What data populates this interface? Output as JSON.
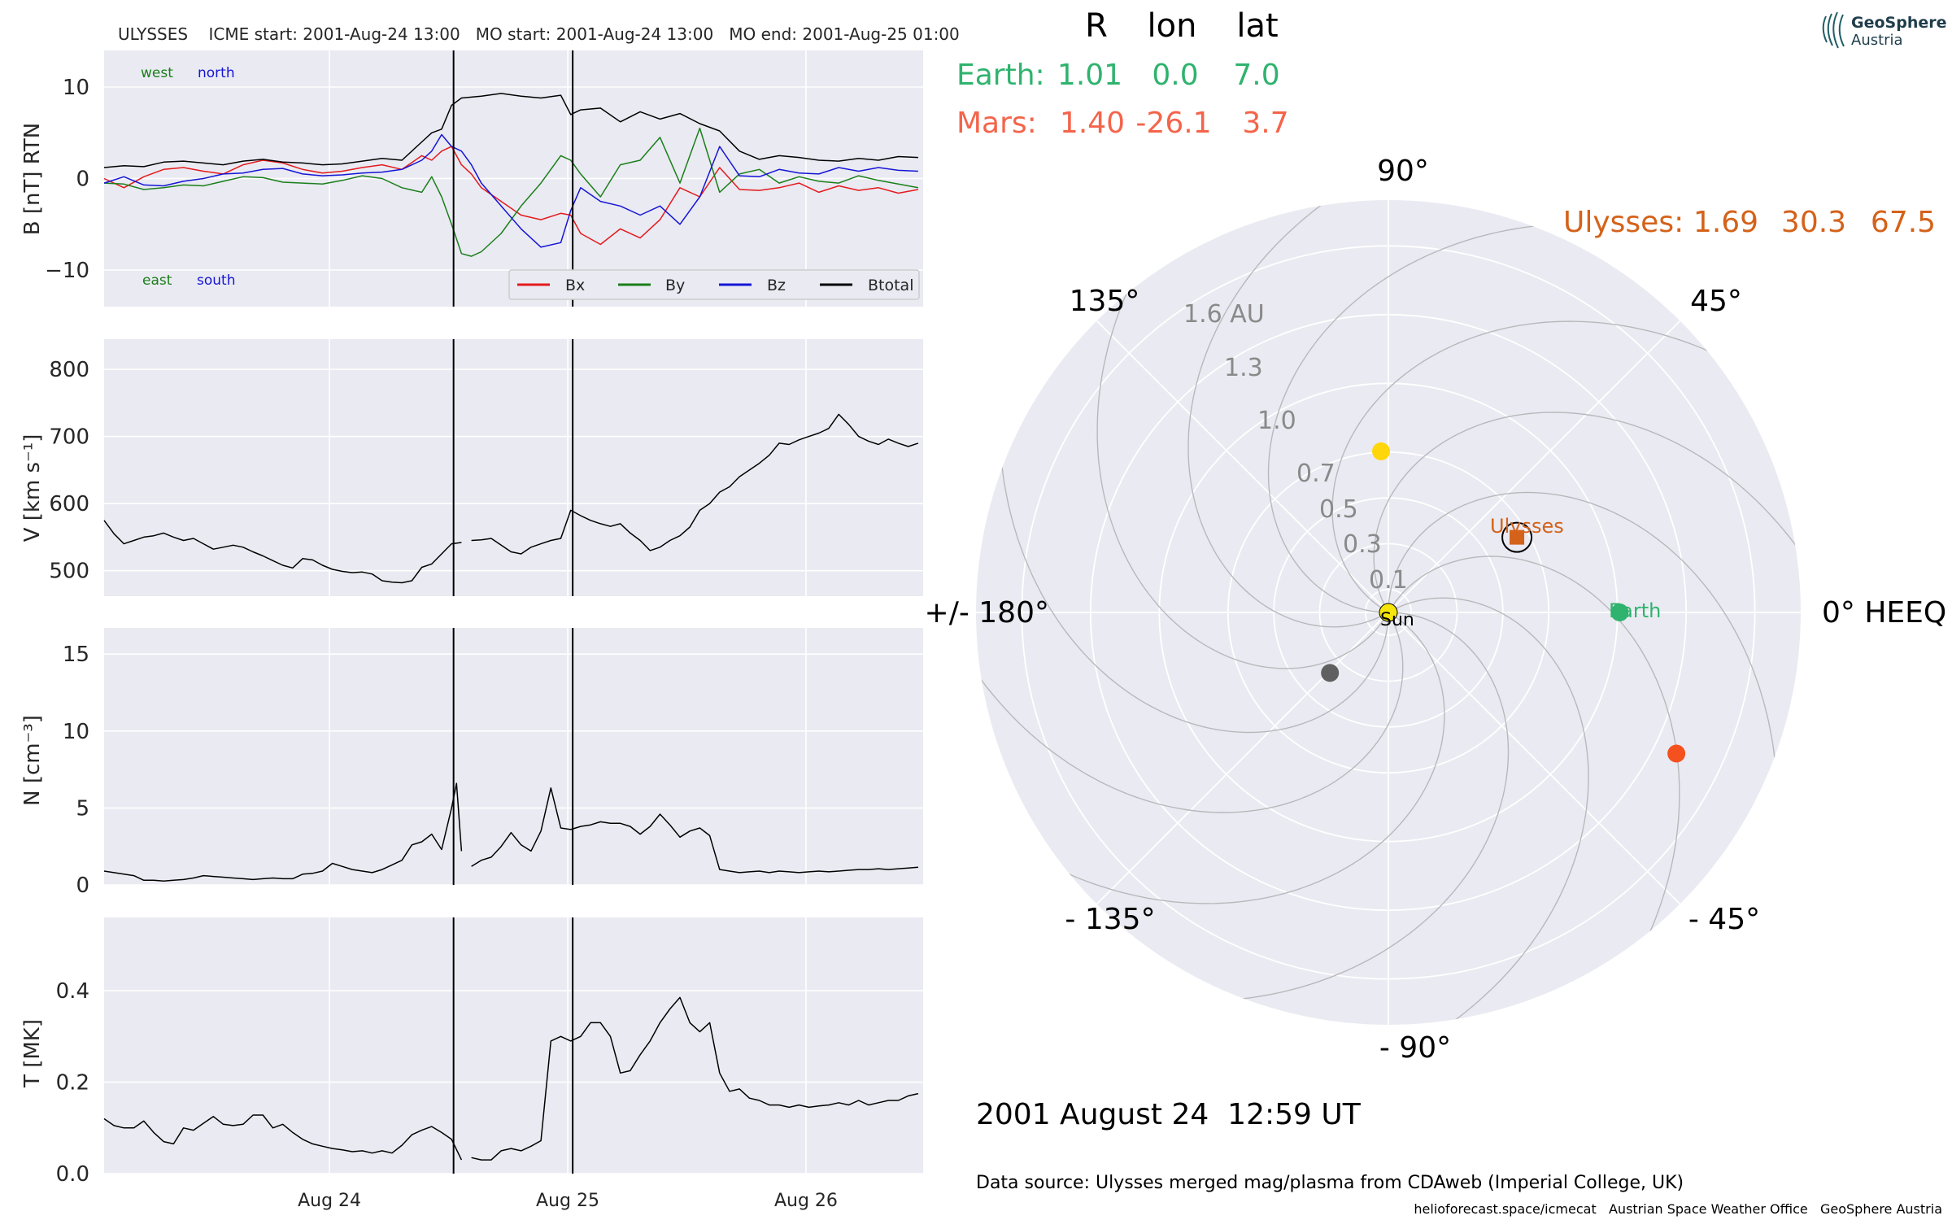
{
  "title": "ULYSSES    ICME start: 2001-Aug-24 13:00   MO start: 2001-Aug-24 13:00   MO end: 2001-Aug-25 01:00",
  "logo": {
    "line1": "GeoSphere",
    "line2": "Austria"
  },
  "timeseries": {
    "x_ticks": [
      "Aug 24",
      "Aug 25",
      "Aug 26"
    ],
    "event_lines": [
      "2001-08-24 13:00",
      "2001-08-25 01:00"
    ]
  },
  "panels": {
    "b": {
      "ylabel": "B [nT] RTN",
      "yticks": [
        "10",
        "0",
        "−10"
      ],
      "annotations": {
        "west": "west",
        "north": "north",
        "east": "east",
        "south": "south"
      },
      "legend": [
        "Bx",
        "By",
        "Bz",
        "Btotal"
      ]
    },
    "v": {
      "ylabel": "V [km s⁻¹]",
      "yticks": [
        "800",
        "700",
        "600",
        "500"
      ]
    },
    "n": {
      "ylabel": "N [cm⁻³]",
      "yticks": [
        "15",
        "10",
        "5",
        "0"
      ]
    },
    "t": {
      "ylabel": "T [MK]",
      "yticks": [
        "0.4",
        "0.2",
        "0.0"
      ]
    }
  },
  "positions": {
    "header": {
      "r": "R",
      "lon": "lon",
      "lat": "lat"
    },
    "earth": {
      "label": "Earth:",
      "r": "1.01",
      "lon": "0.0",
      "lat": "7.0",
      "color": "#2fb36e"
    },
    "mars": {
      "label": "Mars:",
      "r": "1.40",
      "lon": "-26.1",
      "lat": "3.7",
      "color": "#f4644a"
    },
    "ulysses": {
      "label": "Ulysses:",
      "r": "1.69",
      "lon": "30.3",
      "lat": "67.5",
      "color": "#d4621a"
    }
  },
  "polar": {
    "angle_labels": {
      "a90": "90°",
      "a45": "45°",
      "a135": "135°",
      "a0": "0° HEEQ",
      "a180": "+/- 180°",
      "am45": "- 45°",
      "am135": "- 135°",
      "am90": "- 90°"
    },
    "r_labels": [
      "1.6 AU",
      "1.3",
      "1.0",
      "0.7",
      "0.5",
      "0.3",
      "0.1"
    ],
    "object_labels": {
      "sun": "Sun",
      "earth": "Earth",
      "ulysses": "Ulysses"
    }
  },
  "date_text": "2001 August 24  12:59 UT",
  "data_source": "Data source: Ulysses merged mag/plasma from CDAweb (Imperial College, UK)",
  "footer": "helioforecast.space/icmecat   Austrian Space Weather Office   GeoSphere Austria",
  "colors": {
    "bx": "#e41a1c",
    "by": "#1a7f1a",
    "bz": "#1515d6",
    "btotal": "#000000",
    "panel_bg": "#eaeaf2"
  },
  "chart_data": [
    {
      "type": "line",
      "ylabel": "B [nT] RTN",
      "x_unit": "hours since plot start (Aug 24 00:00 = 22.7, Aug 25 00:00 = 46.7, Aug 26 00:00 = 70.7)",
      "ylim": [
        -14,
        14
      ],
      "series": [
        {
          "name": "Btotal",
          "x": [
            0,
            2,
            4,
            6,
            8,
            10,
            12,
            14,
            16,
            18,
            20,
            22,
            24,
            26,
            28,
            30,
            32,
            33,
            34,
            35,
            36,
            37,
            38,
            40,
            42,
            44,
            46,
            47,
            48,
            50,
            52,
            54,
            56,
            58,
            60,
            62,
            64,
            66,
            68,
            70,
            72,
            74,
            76,
            78,
            80,
            82
          ],
          "values": [
            1.2,
            1.4,
            1.3,
            1.8,
            1.9,
            1.7,
            1.5,
            1.9,
            2.1,
            1.8,
            1.7,
            1.5,
            1.6,
            1.9,
            2.2,
            2.0,
            4.0,
            5.0,
            5.4,
            8.0,
            8.8,
            8.9,
            9.0,
            9.3,
            9.0,
            8.8,
            9.1,
            7.0,
            7.5,
            7.7,
            6.2,
            7.3,
            6.5,
            7.1,
            6.0,
            5.2,
            3.0,
            2.1,
            2.5,
            2.3,
            2.0,
            1.9,
            2.2,
            2.0,
            2.4,
            2.3
          ]
        },
        {
          "name": "Bx",
          "x": [
            0,
            2,
            4,
            6,
            8,
            10,
            12,
            14,
            16,
            18,
            20,
            22,
            24,
            26,
            28,
            30,
            32,
            33,
            34,
            35,
            36,
            37,
            38,
            40,
            42,
            44,
            46,
            47,
            48,
            50,
            52,
            54,
            56,
            58,
            60,
            62,
            64,
            66,
            68,
            70,
            72,
            74,
            76,
            78,
            80,
            82
          ],
          "values": [
            0.0,
            -1.0,
            0.2,
            1.0,
            1.2,
            0.8,
            0.5,
            1.5,
            2.0,
            1.7,
            1.0,
            0.6,
            0.8,
            1.2,
            1.5,
            1.0,
            2.5,
            2.0,
            3.0,
            3.5,
            1.5,
            0.5,
            -1.0,
            -2.5,
            -4.0,
            -4.5,
            -3.8,
            -4.0,
            -6.0,
            -7.2,
            -5.5,
            -6.5,
            -4.5,
            -1.0,
            -2.0,
            1.2,
            -1.2,
            -1.3,
            -1.0,
            -0.5,
            -1.5,
            -0.8,
            -1.3,
            -1.0,
            -1.6,
            -1.2
          ]
        },
        {
          "name": "By",
          "x": [
            0,
            2,
            4,
            6,
            8,
            10,
            12,
            14,
            16,
            18,
            20,
            22,
            24,
            26,
            28,
            30,
            32,
            33,
            34,
            35,
            36,
            37,
            38,
            40,
            42,
            44,
            46,
            47,
            48,
            50,
            52,
            54,
            56,
            58,
            60,
            62,
            64,
            66,
            68,
            70,
            72,
            74,
            76,
            78,
            80,
            82
          ],
          "values": [
            -0.5,
            -0.6,
            -1.2,
            -1.0,
            -0.7,
            -0.8,
            -0.3,
            0.2,
            0.1,
            -0.4,
            -0.5,
            -0.6,
            -0.2,
            0.3,
            0.0,
            -1.0,
            -1.5,
            0.2,
            -2.0,
            -5.0,
            -8.2,
            -8.5,
            -8.0,
            -6.0,
            -3.0,
            -0.5,
            2.5,
            2.0,
            0.5,
            -2.0,
            1.5,
            2.0,
            4.5,
            -0.5,
            5.5,
            -1.5,
            0.5,
            1.0,
            -0.5,
            0.2,
            -0.3,
            -0.5,
            0.3,
            -0.2,
            -0.6,
            -1.0
          ]
        },
        {
          "name": "Bz",
          "x": [
            0,
            2,
            4,
            6,
            8,
            10,
            12,
            14,
            16,
            18,
            20,
            22,
            24,
            26,
            28,
            30,
            32,
            33,
            34,
            35,
            36,
            37,
            38,
            40,
            42,
            44,
            46,
            47,
            48,
            50,
            52,
            54,
            56,
            58,
            60,
            62,
            64,
            66,
            68,
            70,
            72,
            74,
            76,
            78,
            80,
            82
          ],
          "values": [
            -0.5,
            0.2,
            -0.7,
            -0.8,
            -0.3,
            0.0,
            0.5,
            0.6,
            1.0,
            1.1,
            0.5,
            0.3,
            0.4,
            0.6,
            0.7,
            1.0,
            2.0,
            3.0,
            4.8,
            3.5,
            3.0,
            1.5,
            -0.5,
            -3.0,
            -5.5,
            -7.5,
            -7.0,
            -3.5,
            -1.0,
            -2.5,
            -3.0,
            -4.0,
            -3.0,
            -5.0,
            -2.0,
            3.5,
            0.3,
            0.2,
            1.0,
            0.6,
            0.5,
            1.2,
            0.8,
            1.2,
            0.9,
            0.8
          ]
        }
      ]
    },
    {
      "type": "line",
      "ylabel": "V [km s⁻¹]",
      "ylim": [
        462,
        845
      ],
      "series": [
        {
          "name": "V",
          "x": [
            0,
            1,
            2,
            3,
            4,
            5,
            6,
            7,
            8,
            9,
            10,
            11,
            12,
            13,
            14,
            15,
            16,
            17,
            18,
            19,
            20,
            21,
            22,
            23,
            24,
            25,
            26,
            27,
            28,
            29,
            30,
            31,
            32,
            33,
            34,
            35,
            36
          ],
          "values": [
            575,
            555,
            540,
            545,
            550,
            552,
            556,
            550,
            545,
            548,
            540,
            532,
            535,
            538,
            535,
            528,
            522,
            515,
            508,
            504,
            518,
            516,
            508,
            502,
            499,
            497,
            498,
            495,
            485,
            483,
            482,
            485,
            505,
            510,
            525,
            540,
            542
          ]
        },
        {
          "name": "V",
          "x": [
            37,
            38,
            39,
            40,
            41,
            42,
            43,
            44,
            45,
            46,
            47,
            48,
            49,
            50,
            51,
            52,
            53,
            54,
            55,
            56,
            57,
            58,
            59,
            60,
            61,
            62,
            63,
            64,
            65,
            66,
            67,
            68,
            69,
            70,
            71,
            72,
            73,
            74,
            75,
            76,
            77,
            78,
            79,
            80,
            81,
            82
          ],
          "values": [
            545,
            546,
            548,
            538,
            528,
            525,
            535,
            540,
            545,
            548,
            590,
            582,
            575,
            570,
            566,
            570,
            556,
            545,
            530,
            535,
            545,
            552,
            565,
            590,
            600,
            617,
            625,
            640,
            650,
            660,
            672,
            690,
            688,
            695,
            700,
            705,
            712,
            733,
            718,
            700,
            693,
            688,
            696,
            690,
            685,
            690
          ]
        }
      ]
    },
    {
      "type": "line",
      "ylabel": "N [cm⁻³]",
      "ylim": [
        0,
        16.7
      ],
      "series": [
        {
          "name": "N",
          "x": [
            0,
            1,
            2,
            3,
            4,
            5,
            6,
            7,
            8,
            9,
            10,
            11,
            12,
            13,
            14,
            15,
            16,
            17,
            18,
            19,
            20,
            21,
            22,
            23,
            24,
            25,
            26,
            27,
            28,
            29,
            30,
            31,
            32,
            33,
            34,
            35,
            35.5,
            36
          ],
          "values": [
            0.9,
            0.8,
            0.7,
            0.6,
            0.3,
            0.3,
            0.25,
            0.3,
            0.35,
            0.45,
            0.6,
            0.55,
            0.5,
            0.45,
            0.4,
            0.35,
            0.4,
            0.45,
            0.4,
            0.4,
            0.7,
            0.75,
            0.9,
            1.4,
            1.2,
            1.0,
            0.9,
            0.8,
            1.0,
            1.3,
            1.6,
            2.6,
            2.8,
            3.3,
            2.3,
            5.0,
            6.6,
            2.2
          ]
        },
        {
          "name": "N",
          "x": [
            37,
            38,
            39,
            40,
            41,
            42,
            43,
            44,
            45,
            46,
            47,
            48,
            49,
            50,
            51,
            52,
            53,
            54,
            55,
            56,
            57,
            58,
            59,
            60,
            61,
            62,
            63,
            64,
            65,
            66,
            67,
            68,
            69,
            70,
            71,
            72,
            73,
            74,
            75,
            76,
            77,
            78,
            79,
            80,
            81,
            82
          ],
          "values": [
            1.2,
            1.6,
            1.8,
            2.5,
            3.4,
            2.6,
            2.2,
            3.5,
            6.3,
            3.7,
            3.6,
            3.8,
            3.9,
            4.1,
            4.0,
            4.0,
            3.8,
            3.3,
            3.8,
            4.6,
            3.9,
            3.1,
            3.5,
            3.7,
            3.2,
            1.0,
            0.9,
            0.8,
            0.85,
            0.9,
            0.8,
            0.9,
            0.85,
            0.8,
            0.85,
            0.9,
            0.85,
            0.9,
            0.95,
            1.0,
            1.0,
            1.05,
            1.0,
            1.05,
            1.1,
            1.15
          ]
        }
      ]
    },
    {
      "type": "line",
      "ylabel": "T [MK]",
      "ylim": [
        0,
        0.56
      ],
      "series": [
        {
          "name": "T",
          "x": [
            0,
            1,
            2,
            3,
            4,
            5,
            6,
            7,
            8,
            9,
            10,
            11,
            12,
            13,
            14,
            15,
            16,
            17,
            18,
            19,
            20,
            21,
            22,
            23,
            24,
            25,
            26,
            27,
            28,
            29,
            30,
            31,
            32,
            33,
            34,
            35,
            36
          ],
          "values": [
            0.12,
            0.105,
            0.1,
            0.1,
            0.115,
            0.09,
            0.07,
            0.065,
            0.1,
            0.095,
            0.11,
            0.125,
            0.108,
            0.105,
            0.108,
            0.128,
            0.128,
            0.1,
            0.108,
            0.09,
            0.075,
            0.065,
            0.06,
            0.055,
            0.052,
            0.048,
            0.05,
            0.045,
            0.05,
            0.045,
            0.062,
            0.085,
            0.095,
            0.103,
            0.09,
            0.075,
            0.03
          ]
        },
        {
          "name": "T",
          "x": [
            37,
            38,
            39,
            40,
            41,
            42,
            43,
            44,
            45,
            46,
            47,
            48,
            49,
            50,
            51,
            52,
            53,
            54,
            55,
            56,
            57,
            58,
            59,
            60,
            61,
            62,
            63,
            64,
            65,
            66,
            67,
            68,
            69,
            70,
            71,
            72,
            73,
            74,
            75,
            76,
            77,
            78,
            79,
            80,
            81,
            82
          ],
          "values": [
            0.035,
            0.03,
            0.03,
            0.05,
            0.055,
            0.05,
            0.06,
            0.072,
            0.29,
            0.3,
            0.29,
            0.3,
            0.33,
            0.33,
            0.3,
            0.22,
            0.225,
            0.26,
            0.29,
            0.33,
            0.36,
            0.385,
            0.33,
            0.31,
            0.33,
            0.22,
            0.18,
            0.185,
            0.165,
            0.16,
            0.15,
            0.15,
            0.145,
            0.15,
            0.145,
            0.148,
            0.15,
            0.155,
            0.15,
            0.16,
            0.15,
            0.155,
            0.16,
            0.16,
            0.17,
            0.175
          ]
        }
      ]
    },
    {
      "type": "scatter",
      "title": "HEEQ polar plot",
      "r_max_au": 1.8,
      "points": [
        {
          "name": "Sun",
          "r": 0.0,
          "lon_deg": 0,
          "color": "#f5e50a"
        },
        {
          "name": "Earth",
          "r": 1.01,
          "lon_deg": 0.0,
          "color": "#2fb36e"
        },
        {
          "name": "Mars",
          "r": 1.4,
          "lon_deg": -26.1,
          "color": "#f4511e"
        },
        {
          "name": "Ulysses",
          "r": 0.65,
          "lon_deg": 30.3,
          "color": "#d4621a"
        },
        {
          "name": "",
          "r": 0.704,
          "lon_deg": 92.6,
          "color": "#ffd60a"
        },
        {
          "name": "",
          "r": 0.367,
          "lon_deg": -134,
          "color": "#606060"
        }
      ]
    }
  ]
}
